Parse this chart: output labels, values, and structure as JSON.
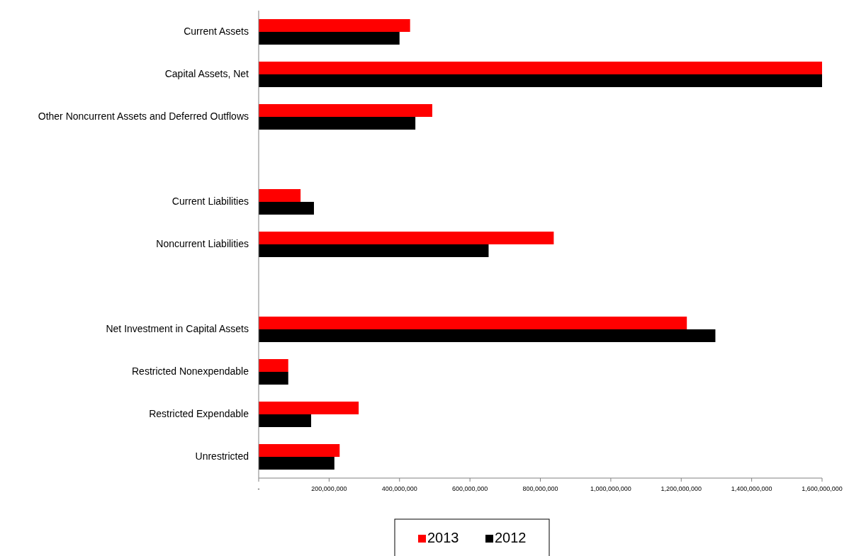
{
  "chart_data": {
    "type": "bar",
    "orientation": "horizontal",
    "categories": [
      "Current Assets",
      "Capital Assets, Net",
      "Other Noncurrent Assets and Deferred Outflows",
      null,
      "Current Liabilities",
      "Noncurrent Liabilities",
      null,
      "Net Investment in Capital Assets",
      "Restricted Nonexpendable",
      "Restricted Expendable",
      "Unrestricted"
    ],
    "series": [
      {
        "name": "2013",
        "color": "#ff0000",
        "values": [
          430000000,
          1600000000,
          493000000,
          null,
          119000000,
          838000000,
          null,
          1216000000,
          84000000,
          284000000,
          230000000
        ]
      },
      {
        "name": "2012",
        "color": "#000000",
        "values": [
          400000000,
          1600000000,
          445000000,
          null,
          157000000,
          653000000,
          null,
          1297000000,
          84000000,
          149000000,
          215000000
        ]
      }
    ],
    "xlim": [
      0,
      1600000000
    ],
    "xticks": [
      {
        "value": 0,
        "label": "-"
      },
      {
        "value": 200000000,
        "label": "200,000,000"
      },
      {
        "value": 400000000,
        "label": "400,000,000"
      },
      {
        "value": 600000000,
        "label": "600,000,000"
      },
      {
        "value": 800000000,
        "label": "800,000,000"
      },
      {
        "value": 1000000000,
        "label": "1,000,000,000"
      },
      {
        "value": 1200000000,
        "label": "1,200,000,000"
      },
      {
        "value": 1400000000,
        "label": "1,400,000,000"
      },
      {
        "value": 1600000000,
        "label": "1,600,000,000"
      }
    ],
    "grid": false,
    "legend": "bottom"
  }
}
